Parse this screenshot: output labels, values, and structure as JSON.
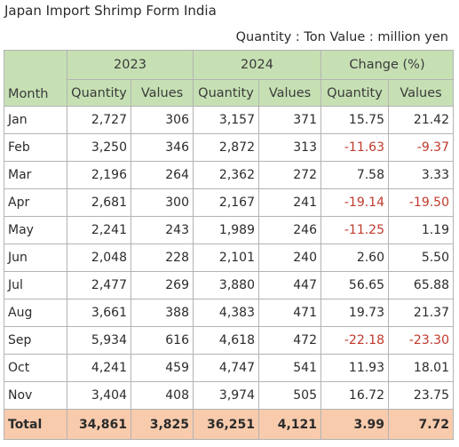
{
  "title": "Japan Import Shrimp Form India",
  "units": "Quantity : Ton Value : million yen",
  "header": {
    "month": "Month",
    "group_2023": "2023",
    "group_2024": "2024",
    "group_change": "Change (%)",
    "quantity": "Quantity",
    "values": "Values"
  },
  "rows": [
    {
      "month": "Jan",
      "q2023": "2,727",
      "v2023": "306",
      "q2024": "3,157",
      "v2024": "371",
      "qchg": "15.75",
      "vchg": "21.42"
    },
    {
      "month": "Feb",
      "q2023": "3,250",
      "v2023": "346",
      "q2024": "2,872",
      "v2024": "313",
      "qchg": "-11.63",
      "vchg": "-9.37"
    },
    {
      "month": "Mar",
      "q2023": "2,196",
      "v2023": "264",
      "q2024": "2,362",
      "v2024": "272",
      "qchg": "7.58",
      "vchg": "3.33"
    },
    {
      "month": "Apr",
      "q2023": "2,681",
      "v2023": "300",
      "q2024": "2,167",
      "v2024": "241",
      "qchg": "-19.14",
      "vchg": "-19.50"
    },
    {
      "month": "May",
      "q2023": "2,241",
      "v2023": "243",
      "q2024": "1,989",
      "v2024": "246",
      "qchg": "-11.25",
      "vchg": "1.19"
    },
    {
      "month": "Jun",
      "q2023": "2,048",
      "v2023": "228",
      "q2024": "2,101",
      "v2024": "240",
      "qchg": "2.60",
      "vchg": "5.50"
    },
    {
      "month": "Jul",
      "q2023": "2,477",
      "v2023": "269",
      "q2024": "3,880",
      "v2024": "447",
      "qchg": "56.65",
      "vchg": "65.88"
    },
    {
      "month": "Aug",
      "q2023": "3,661",
      "v2023": "388",
      "q2024": "4,383",
      "v2024": "471",
      "qchg": "19.73",
      "vchg": "21.37"
    },
    {
      "month": "Sep",
      "q2023": "5,934",
      "v2023": "616",
      "q2024": "4,618",
      "v2024": "472",
      "qchg": "-22.18",
      "vchg": "-23.30"
    },
    {
      "month": "Oct",
      "q2023": "4,241",
      "v2023": "459",
      "q2024": "4,747",
      "v2024": "541",
      "qchg": "11.93",
      "vchg": "18.01"
    },
    {
      "month": "Nov",
      "q2023": "3,404",
      "v2023": "408",
      "q2024": "3,974",
      "v2024": "505",
      "qchg": "16.72",
      "vchg": "23.75"
    }
  ],
  "total": {
    "month": "Total",
    "q2023": "34,861",
    "v2023": "3,825",
    "q2024": "36,251",
    "v2024": "4,121",
    "qchg": "3.99",
    "vchg": "7.72"
  },
  "colors": {
    "header_bg": "#c6e0b4",
    "total_bg": "#f8cbad",
    "negative_text": "#c0392b",
    "grid": "#b3b3b3"
  }
}
